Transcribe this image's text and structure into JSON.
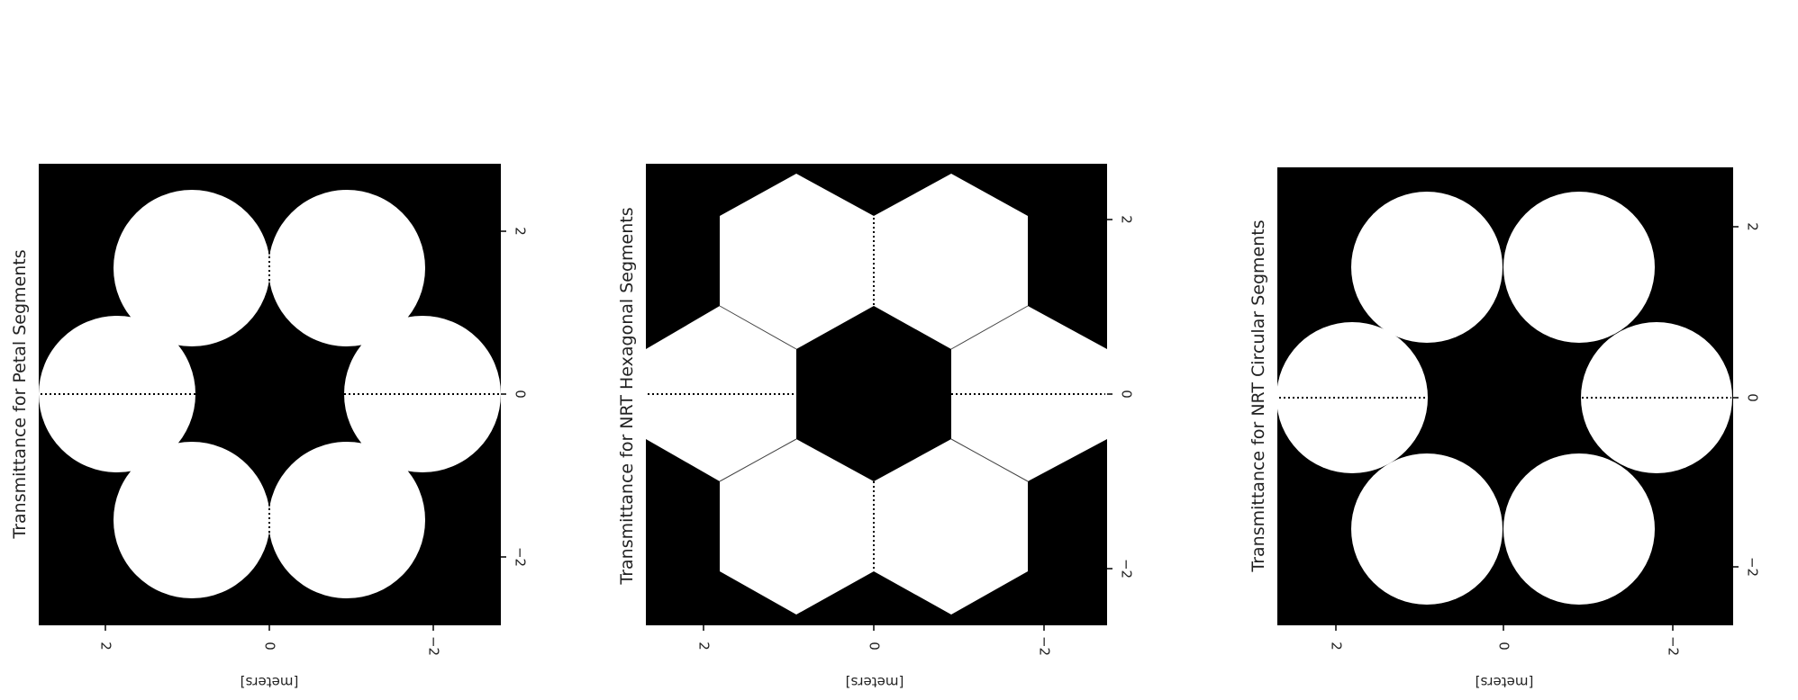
{
  "panels": [
    {
      "title": "Transmittance for Petal Segments",
      "segment_shape": "petal",
      "axis_label": "[meters]",
      "bottom_ticks": [
        "2",
        "0",
        "−2"
      ],
      "right_ticks": [
        "2",
        "0",
        "−2"
      ]
    },
    {
      "title": "Transmittance for NRT Hexagonal Segments",
      "segment_shape": "hexagon",
      "axis_label": "[meters]",
      "bottom_ticks": [
        "2",
        "0",
        "−2"
      ],
      "right_ticks": [
        "2",
        "0",
        "−2"
      ]
    },
    {
      "title": "Transmittance for NRT Circular Segments",
      "segment_shape": "circle",
      "axis_label": "[meters]",
      "bottom_ticks": [
        "2",
        "0",
        "−2"
      ],
      "right_ticks": [
        "2",
        "0",
        "−2"
      ]
    }
  ],
  "colors": {
    "background": "#000000",
    "segment": "#ffffff"
  }
}
